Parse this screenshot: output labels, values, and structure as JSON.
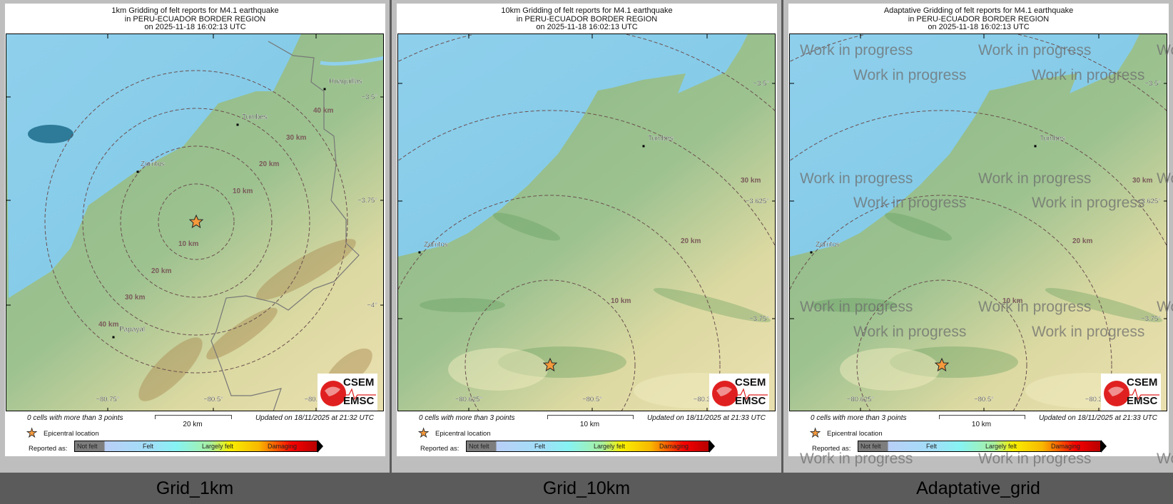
{
  "panels": [
    {
      "title": [
        "1km Gridding of felt reports for M4.1 earthquake",
        "in PERU-ECUADOR BORDER REGION",
        "on  2025-11-18 16:02:13 UTC"
      ],
      "cities": [
        "Huaquillas",
        "Tumbes",
        "Zorritos",
        "Papayal"
      ],
      "circle_labels": [
        "10 km",
        "10 km",
        "20 km",
        "20 km",
        "30 km",
        "30 km",
        "40 km",
        "40 km"
      ],
      "lat_labels": [
        "−3.5°",
        "−3.75°",
        "−4°"
      ],
      "lon_labels": [
        "−80.75°",
        "−80.5°",
        "−80.25°"
      ],
      "cells_text": "0 cells with more than 3 points",
      "scale_label": "20 km",
      "updated_text": "Updated on 18/11/2025 at 21:32 UTC",
      "caption": "Grid_1km"
    },
    {
      "title": [
        "10km Gridding of felt reports for M4.1 earthquake",
        "in PERU-ECUADOR BORDER REGION",
        "on  2025-11-18 16:02:13 UTC"
      ],
      "cities": [
        "Tumbes",
        "Zorritos"
      ],
      "circle_labels": [
        "10 km",
        "20 km",
        "30 km"
      ],
      "lat_labels": [
        "−3.5°",
        "−3.625°",
        "−3.75°"
      ],
      "lon_labels": [
        "−80.625°",
        "−80.5°",
        "−80.375°"
      ],
      "cells_text": "0 cells with more than 3 points",
      "scale_label": "10 km",
      "updated_text": "Updated on 18/11/2025 at 21:33 UTC",
      "caption": "Grid_10km"
    },
    {
      "title": [
        "Adaptative Gridding of felt reports for M4.1 earthquake",
        "in PERU-ECUADOR BORDER REGION",
        "on  2025-11-18 16:02:13 UTC"
      ],
      "cities": [
        "Tumbes",
        "Zorritos"
      ],
      "circle_labels": [
        "10 km",
        "20 km",
        "30 km"
      ],
      "lat_labels": [
        "−3.5°",
        "−3.625°",
        "−3.75°"
      ],
      "lon_labels": [
        "−80.625°",
        "−80.5°",
        "−80.375°"
      ],
      "cells_text": "0 cells with more than 3 points",
      "scale_label": "10 km",
      "updated_text": "Updated on 18/11/2025 at 21:33 UTC",
      "caption": "Adaptative_grid",
      "watermark": "Work in progress"
    }
  ],
  "legend": {
    "epicentre": "Epicentral location",
    "reported_as": "Reported as:",
    "scale": [
      "Not felt",
      "Felt",
      "Largely felt",
      "Damaging"
    ],
    "epicentre_color": "#f59a3c"
  },
  "logo": {
    "line1": "CSEM",
    "line2": "EMSC",
    "color": "#e02020"
  }
}
